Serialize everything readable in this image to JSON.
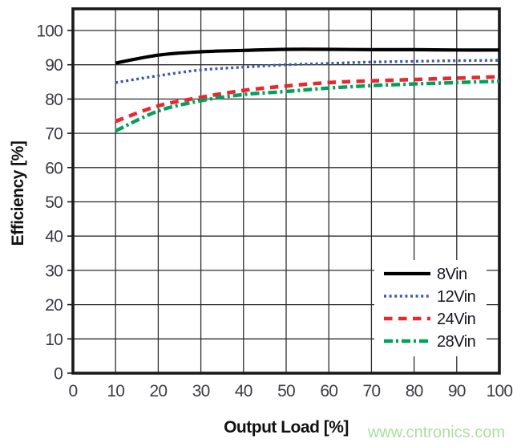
{
  "watermark": {
    "text": "www.cntronics.com",
    "color": "#abdfa0"
  },
  "chart_data": {
    "type": "line",
    "xlabel": "Output Load [%]",
    "ylabel": "Efficiency [%]",
    "xlim": [
      0,
      100
    ],
    "ylim": [
      0,
      100
    ],
    "xticks": [
      0,
      10,
      20,
      30,
      40,
      50,
      60,
      70,
      80,
      90,
      100
    ],
    "yticks": [
      0,
      10,
      20,
      30,
      40,
      50,
      60,
      70,
      80,
      90,
      100
    ],
    "grid": true,
    "legend_position": "lower-right",
    "x": [
      10,
      20,
      30,
      40,
      50,
      60,
      70,
      80,
      90,
      100
    ],
    "series": [
      {
        "name": "8Vin",
        "color": "#000000",
        "style": "solid",
        "values": [
          90.5,
          92.8,
          93.8,
          94.2,
          94.5,
          94.5,
          94.4,
          94.4,
          94.3,
          94.3
        ]
      },
      {
        "name": "12Vin",
        "color": "#3b5ca8",
        "style": "dotted",
        "values": [
          84.8,
          86.8,
          88.5,
          89.3,
          90.0,
          90.4,
          90.8,
          91.0,
          91.2,
          91.3
        ]
      },
      {
        "name": "24Vin",
        "color": "#e8282f",
        "style": "dashed",
        "values": [
          73.5,
          78.0,
          80.5,
          82.5,
          83.8,
          84.8,
          85.3,
          85.7,
          86.1,
          86.5
        ]
      },
      {
        "name": "28Vin",
        "color": "#00a15c",
        "style": "dashdot",
        "values": [
          70.7,
          76.5,
          79.5,
          81.3,
          82.2,
          83.2,
          83.9,
          84.4,
          84.8,
          85.2
        ]
      }
    ]
  }
}
